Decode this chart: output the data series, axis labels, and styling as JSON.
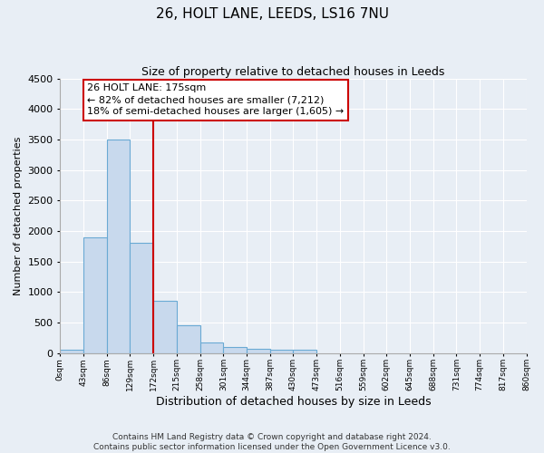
{
  "title": "26, HOLT LANE, LEEDS, LS16 7NU",
  "subtitle": "Size of property relative to detached houses in Leeds",
  "xlabel": "Distribution of detached houses by size in Leeds",
  "ylabel": "Number of detached properties",
  "bar_color": "#c8d9ed",
  "bar_edge_color": "#6aaad4",
  "background_color": "#e8eef5",
  "grid_color": "#ffffff",
  "bin_edges": [
    0,
    43,
    86,
    129,
    172,
    215,
    258,
    301,
    344,
    387,
    430,
    473,
    516,
    559,
    602,
    645,
    688,
    731,
    774,
    817,
    860
  ],
  "bar_values": [
    50,
    1900,
    3500,
    1800,
    850,
    450,
    175,
    100,
    60,
    50,
    50,
    0,
    0,
    0,
    0,
    0,
    0,
    0,
    0,
    0
  ],
  "red_line_x": 172,
  "ylim": [
    0,
    4500
  ],
  "yticks": [
    0,
    500,
    1000,
    1500,
    2000,
    2500,
    3000,
    3500,
    4000,
    4500
  ],
  "annotation_title": "26 HOLT LANE: 175sqm",
  "annotation_line1": "← 82% of detached houses are smaller (7,212)",
  "annotation_line2": "18% of semi-detached houses are larger (1,605) →",
  "annotation_box_color": "#ffffff",
  "annotation_box_edge": "#cc0000",
  "footer_line1": "Contains HM Land Registry data © Crown copyright and database right 2024.",
  "footer_line2": "Contains public sector information licensed under the Open Government Licence v3.0.",
  "title_fontsize": 11,
  "subtitle_fontsize": 9,
  "xlabel_fontsize": 9,
  "ylabel_fontsize": 8
}
